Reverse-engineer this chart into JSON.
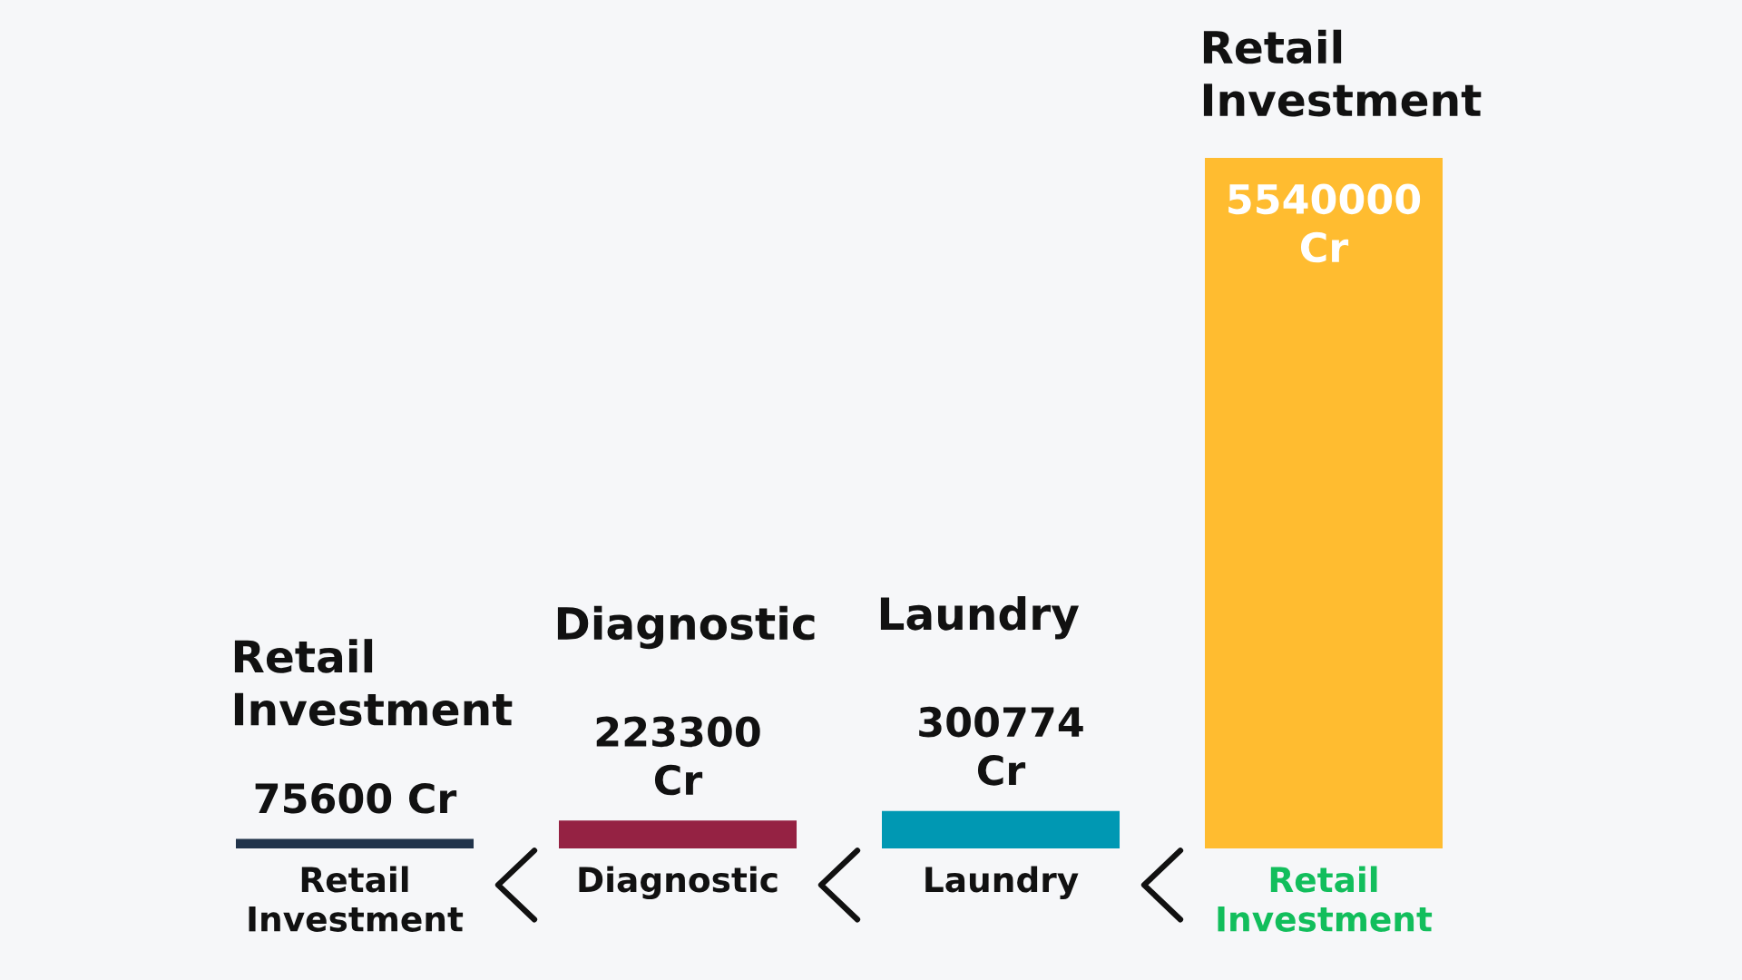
{
  "chart_data": {
    "type": "bar",
    "categories": [
      "Retail Investment",
      "Diagnostic",
      "Laundry",
      "Retail Investment"
    ],
    "values": [
      75600,
      223300,
      300774,
      5540000
    ],
    "colors": [
      "#21344b",
      "#952243",
      "#0098b3",
      "#ffbc30"
    ],
    "value_labels": [
      "75600 Cr",
      "223300 Cr",
      "300774 Cr",
      "5540000 Cr"
    ],
    "annotations": [
      "Retail Investment",
      "Diagnostic",
      "Laundry",
      "Retail Investment"
    ]
  }
}
